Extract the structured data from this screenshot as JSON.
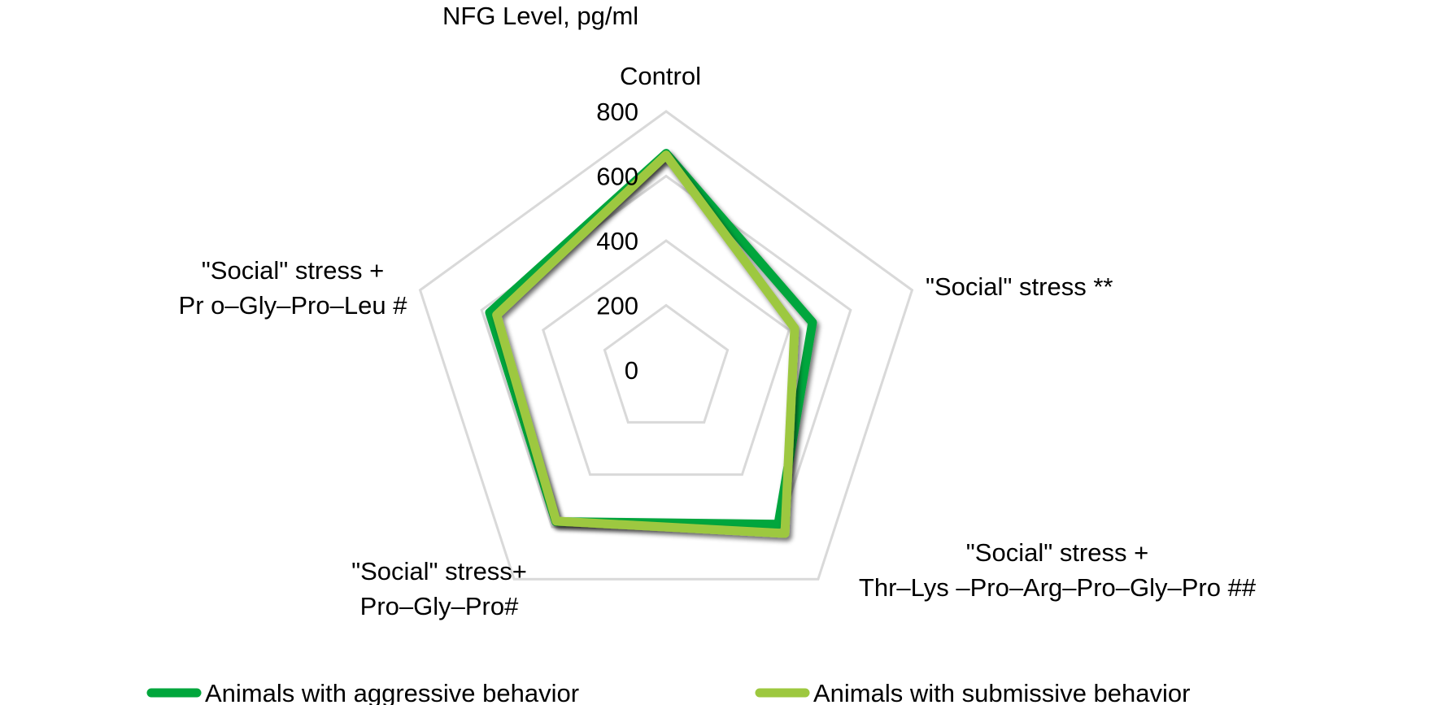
{
  "chart_data": {
    "type": "radar",
    "title": "NFG Level, pg/ml",
    "categories": [
      [
        "Control"
      ],
      [
        "\"Social\" stress **"
      ],
      [
        "\"Social\" stress +",
        "Thr–Lys –Pro–Arg–Pro–Gly–Pro ##"
      ],
      [
        "\"Social\" stress+",
        "Pro–Gly–Pro#"
      ],
      [
        "\"Social\" stress +",
        "Pr o–Gly–Pro–Leu  #"
      ]
    ],
    "series": [
      {
        "name": "Animals with aggressive behavior",
        "color": "#00a63c",
        "values": [
          670,
          476,
          590,
          580,
          574
        ]
      },
      {
        "name": "Animals with submissive behavior",
        "color": "#9dc83f",
        "values": [
          665,
          418,
          625,
          578,
          551
        ]
      }
    ],
    "rlim": [
      0,
      800
    ],
    "ticks": [
      "0",
      "200",
      "400",
      "600",
      "800"
    ],
    "tick_values": [
      0,
      200,
      400,
      600,
      800
    ],
    "grid": true,
    "grid_color": "#d9d9d9",
    "legend_position": "bottom"
  }
}
